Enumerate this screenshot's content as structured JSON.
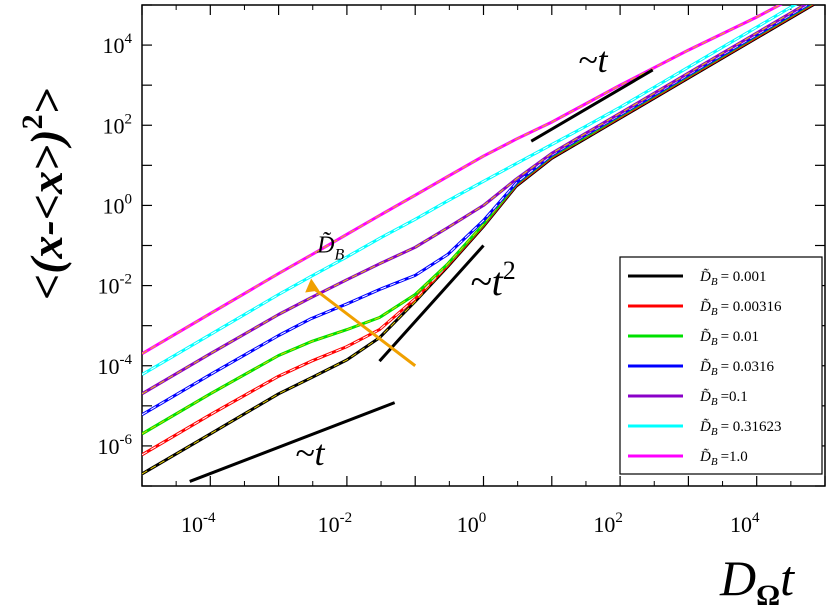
{
  "chart_data": {
    "type": "line",
    "xscale": "log",
    "yscale": "log",
    "xlim": [
      1e-05,
      100000.0
    ],
    "ylim": [
      1e-07,
      100000.0
    ],
    "xlabel": {
      "main": "D",
      "sub": "Ω",
      "tail": "t"
    },
    "ylabel": {
      "main": "<(x-<x>)",
      "sup": "2",
      "tail": ">"
    },
    "xticks": [
      {
        "value": 0.0001,
        "base": "10",
        "exp": "-4"
      },
      {
        "value": 0.01,
        "base": "10",
        "exp": "-2"
      },
      {
        "value": 1,
        "base": "10",
        "exp": "0"
      },
      {
        "value": 100.0,
        "base": "10",
        "exp": "2"
      },
      {
        "value": 10000.0,
        "base": "10",
        "exp": "4"
      }
    ],
    "yticks": [
      {
        "value": 1e-06,
        "base": "10",
        "exp": "-6"
      },
      {
        "value": 0.0001,
        "base": "10",
        "exp": "-4"
      },
      {
        "value": 0.01,
        "base": "10",
        "exp": "-2"
      },
      {
        "value": 1,
        "base": "10",
        "exp": "0"
      },
      {
        "value": 100.0,
        "base": "10",
        "exp": "2"
      },
      {
        "value": 10000.0,
        "base": "10",
        "exp": "4"
      }
    ],
    "series": [
      {
        "name": "D̃B = 0.001",
        "symbol": "D̃",
        "sub": "B",
        "value": "= 0.001",
        "color": "#000000",
        "x": [
          1e-05,
          0.0001,
          0.001,
          0.003,
          0.01,
          0.03,
          0.1,
          0.3,
          1,
          3,
          10,
          30,
          100,
          1000,
          10000.0,
          100000.0
        ],
        "y": [
          2e-07,
          2e-06,
          2e-05,
          5e-05,
          0.00014,
          0.0005,
          0.004,
          0.03,
          0.3,
          3,
          15,
          45,
          150,
          1500,
          15000.0,
          150000.0
        ]
      },
      {
        "name": "D̃B = 0.00316",
        "symbol": "D̃",
        "sub": "B",
        "value": "= 0.00316",
        "color": "#ff0000",
        "x": [
          1e-05,
          0.0001,
          0.001,
          0.003,
          0.01,
          0.03,
          0.1,
          0.3,
          1,
          3,
          10,
          30,
          100,
          1000,
          10000.0,
          100000.0
        ],
        "y": [
          6e-07,
          6e-06,
          5.5e-05,
          0.00013,
          0.0003,
          0.0008,
          0.0047,
          0.032,
          0.32,
          3.2,
          16,
          48,
          160,
          1600,
          16000.0,
          160000.0
        ]
      },
      {
        "name": "D̃B = 0.01",
        "symbol": "D̃",
        "sub": "B",
        "value": "= 0.01",
        "color": "#00e000",
        "x": [
          1e-05,
          0.0001,
          0.001,
          0.003,
          0.01,
          0.03,
          0.1,
          0.3,
          1,
          3,
          10,
          30,
          100,
          1000,
          10000.0,
          100000.0
        ],
        "y": [
          2e-06,
          2e-05,
          0.00018,
          0.0004,
          0.0008,
          0.0016,
          0.006,
          0.035,
          0.34,
          3.4,
          17,
          50,
          170,
          1700,
          17000.0,
          170000.0
        ]
      },
      {
        "name": "D̃B = 0.0316",
        "symbol": "D̃",
        "sub": "B",
        "value": "= 0.0316",
        "color": "#0000ff",
        "x": [
          1e-05,
          0.0001,
          0.001,
          0.003,
          0.01,
          0.03,
          0.1,
          0.3,
          1,
          3,
          10,
          30,
          100,
          1000,
          10000.0,
          100000.0
        ],
        "y": [
          6e-06,
          6e-05,
          0.00057,
          0.0015,
          0.0035,
          0.008,
          0.018,
          0.06,
          0.42,
          3.6,
          18,
          55,
          180,
          1800,
          18000.0,
          180000.0
        ]
      },
      {
        "name": "D̃B =0.1",
        "symbol": "D̃",
        "sub": "B",
        "value": "=0.1",
        "color": "#8a00c8",
        "x": [
          1e-05,
          0.0001,
          0.001,
          0.003,
          0.01,
          0.03,
          0.1,
          0.3,
          1,
          3,
          10,
          30,
          100,
          1000,
          10000.0,
          100000.0
        ],
        "y": [
          2e-05,
          0.0002,
          0.0019,
          0.005,
          0.014,
          0.035,
          0.09,
          0.28,
          1.0,
          4.5,
          20,
          60,
          200,
          2000,
          20000.0,
          200000.0
        ]
      },
      {
        "name": "D̃B = 0.31623",
        "symbol": "D̃",
        "sub": "B",
        "value": "= 0.31623",
        "color": "#00ffff",
        "x": [
          1e-05,
          0.0001,
          0.001,
          0.003,
          0.01,
          0.03,
          0.1,
          0.3,
          1,
          3,
          10,
          30,
          100,
          1000,
          10000.0,
          100000.0
        ],
        "y": [
          6e-05,
          0.0006,
          0.006,
          0.017,
          0.052,
          0.15,
          0.45,
          1.3,
          4,
          11,
          33,
          90,
          280,
          2800,
          28000.0,
          280000.0
        ]
      },
      {
        "name": "D̃B =1.0",
        "symbol": "D̃",
        "sub": "B",
        "value": "=1.0",
        "color": "#ff00ff",
        "x": [
          1e-05,
          0.0001,
          0.001,
          0.003,
          0.01,
          0.03,
          0.1,
          0.3,
          1,
          3,
          10,
          30,
          100,
          1000,
          10000.0,
          100000.0
        ],
        "y": [
          0.0002,
          0.002,
          0.02,
          0.058,
          0.19,
          0.56,
          1.8,
          5.3,
          17,
          45,
          120,
          330,
          1000,
          7500,
          50000.0,
          400000.0
        ]
      }
    ],
    "guides": [
      {
        "label": "~t",
        "x": [
          5e-05,
          0.05
        ],
        "y": [
          1.3e-07,
          1.2e-05
        ]
      },
      {
        "label": "~t2",
        "x": [
          0.03,
          1.0
        ],
        "y": [
          0.00013,
          0.1
        ]
      },
      {
        "label": "~t",
        "x": [
          5.0,
          300
        ],
        "y": [
          40,
          2400
        ]
      }
    ],
    "guide_labels": [
      {
        "main": "~t",
        "sup": ""
      },
      {
        "main": "~t",
        "sup": "2"
      },
      {
        "main": "~t",
        "sup": ""
      }
    ],
    "arrow": {
      "label_main": "D̃",
      "label_sub": "B",
      "color": "#f0a000",
      "x": [
        0.1,
        0.003
      ],
      "y": [
        0.0001,
        0.015
      ]
    },
    "legend_position": "bottom-right"
  }
}
